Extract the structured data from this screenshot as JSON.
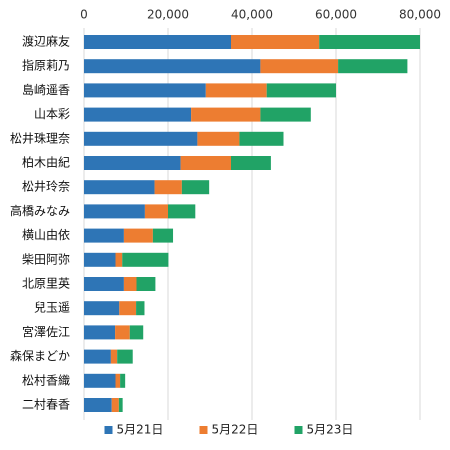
{
  "chart_data": {
    "type": "bar",
    "orientation": "horizontal",
    "stacked": true,
    "title": "",
    "xlabel": "",
    "ylabel": "",
    "xlim": [
      0,
      80000
    ],
    "x_ticks": [
      "0",
      "20,000",
      "40,000",
      "60,000",
      "80,000"
    ],
    "x_tick_values": [
      0,
      20000,
      40000,
      60000,
      80000
    ],
    "grid": true,
    "legend_position": "bottom",
    "categories": [
      "渡辺麻友",
      "指原莉乃",
      "島崎遥香",
      "山本彩",
      "松井珠理奈",
      "柏木由紀",
      "松井玲奈",
      "高橋みなみ",
      "横山由依",
      "柴田阿弥",
      "北原里英",
      "兒玉遥",
      "宮澤佐江",
      "森保まどか",
      "松村香織",
      "二村春香"
    ],
    "series": [
      {
        "name": "5月21日",
        "color": "#2e75b6",
        "values": [
          35000,
          42000,
          29000,
          25500,
          27000,
          23000,
          16800,
          14500,
          9500,
          7500,
          9500,
          8400,
          7400,
          6400,
          7500,
          6600
        ]
      },
      {
        "name": "5月22日",
        "color": "#ed7d31",
        "values": [
          21000,
          18500,
          14500,
          16500,
          10000,
          12000,
          6500,
          5500,
          6900,
          1600,
          3000,
          4000,
          3500,
          1500,
          1100,
          1700
        ]
      },
      {
        "name": "5月23日",
        "color": "#21a366",
        "values": [
          24000,
          16500,
          16500,
          12000,
          10500,
          9500,
          6500,
          6500,
          4800,
          11000,
          4500,
          2000,
          3200,
          3700,
          1200,
          900
        ]
      }
    ]
  }
}
